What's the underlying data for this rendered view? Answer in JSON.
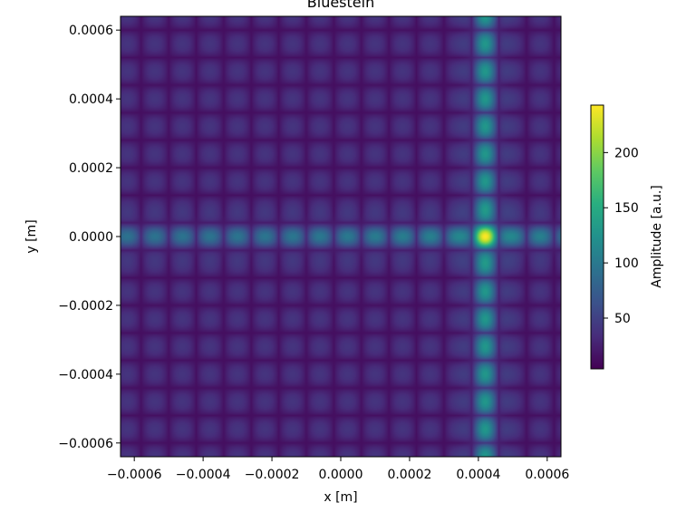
{
  "chart_data": {
    "type": "heatmap",
    "title": "Bluestein",
    "xlabel": "x [m]",
    "ylabel": "y [m]",
    "xlim": [
      -0.00064,
      0.00064
    ],
    "ylim": [
      -0.00064,
      0.00064
    ],
    "x_ticks": [
      -0.0006,
      -0.0004,
      -0.0002,
      0.0,
      0.0002,
      0.0004,
      0.0006
    ],
    "x_tick_labels": [
      "−0.0006",
      "−0.0004",
      "−0.0002",
      "0.0000",
      "0.0002",
      "0.0004",
      "0.0006"
    ],
    "y_ticks": [
      0.0006,
      0.0004,
      0.0002,
      0.0,
      -0.0002,
      -0.0004,
      -0.0006
    ],
    "y_tick_labels": [
      "0.0006",
      "0.0004",
      "0.0002",
      "0.0000",
      "−0.0002",
      "−0.0004",
      "−0.0006"
    ],
    "colormap": "viridis",
    "colorbar": {
      "label": "Amplitude [a.u.]",
      "range": [
        4,
        243
      ],
      "ticks": [
        50,
        100,
        150,
        200
      ],
      "tick_labels": [
        "50",
        "100",
        "150",
        "200"
      ]
    },
    "grid_period": 8e-05,
    "grid_period_y": 8e-05,
    "background_amplitude": 40,
    "peak": {
      "x": 0.00042,
      "y": 0.0,
      "amplitude": 243
    },
    "bright_column": {
      "x": 0.00042,
      "amplitude": 130
    },
    "bright_row": {
      "y": 0.0,
      "amplitude": 115
    },
    "grid": false
  }
}
